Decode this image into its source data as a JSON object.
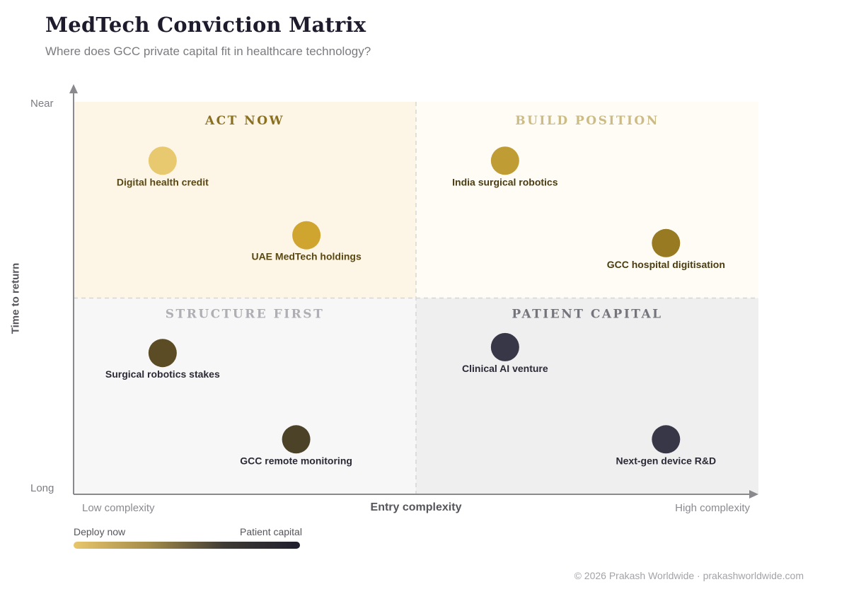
{
  "header": {
    "title": "MedTech Conviction Matrix",
    "subtitle": "Where does GCC private capital fit in healthcare technology?"
  },
  "axes": {
    "y_top": "Near",
    "y_bottom": "Long",
    "y_title": "Time to return",
    "x_left": "Low complexity",
    "x_right": "High complexity",
    "x_title": "Entry complexity"
  },
  "legend": {
    "left_label": "Deploy now",
    "right_label": "Patient capital",
    "gradient_colors": [
      "#e8c66c",
      "#a48c4a",
      "#3e3a34",
      "#1f1e2e"
    ]
  },
  "footer": "© 2026 Prakash Worldwide · prakashworldwide.com",
  "chart_data": {
    "type": "scatter",
    "title": "MedTech Conviction Matrix",
    "subtitle": "Where does GCC private capital fit in healthcare technology?",
    "xlabel": "Entry complexity",
    "ylabel": "Time to return",
    "xlim": [
      0,
      10
    ],
    "ylim": [
      0,
      10
    ],
    "x_tick_labels": [
      "Low complexity",
      "High complexity"
    ],
    "y_tick_labels": [
      "Long",
      "Near"
    ],
    "grid": false,
    "quadrants": [
      {
        "label": "ACT NOW",
        "fill": "#fdf6e7",
        "label_color": "#8a7020"
      },
      {
        "label": "BUILD POSITION",
        "fill": "#fefcf5",
        "label_color": "#cdbb86"
      },
      {
        "label": "STRUCTURE FIRST",
        "fill": "#f7f7f7",
        "label_color": "#aeaeb4"
      },
      {
        "label": "PATIENT CAPITAL",
        "fill": "#efeff0",
        "label_color": "#74747c"
      }
    ],
    "points": [
      {
        "name": "Digital health credit",
        "x": 1.3,
        "y": 8.5,
        "color": "#e8c96f",
        "label_color": "#5a4812"
      },
      {
        "name": "UAE MedTech holdings",
        "x": 3.4,
        "y": 6.6,
        "color": "#d0a52f",
        "label_color": "#5a4812"
      },
      {
        "name": "India surgical robotics",
        "x": 6.3,
        "y": 8.5,
        "color": "#c09c35",
        "label_color": "#4a3c10"
      },
      {
        "name": "GCC hospital digitisation",
        "x": 8.65,
        "y": 6.4,
        "color": "#977a22",
        "label_color": "#4a3c10"
      },
      {
        "name": "Surgical robotics stakes",
        "x": 1.3,
        "y": 3.6,
        "color": "#5b4c25",
        "label_color": "#2b2a36"
      },
      {
        "name": "GCC remote monitoring",
        "x": 3.25,
        "y": 1.4,
        "color": "#4b4228",
        "label_color": "#2b2a36"
      },
      {
        "name": "Clinical AI venture",
        "x": 6.3,
        "y": 3.75,
        "color": "#383747",
        "label_color": "#2b2a36"
      },
      {
        "name": "Next-gen device R&D",
        "x": 8.65,
        "y": 1.4,
        "color": "#383747",
        "label_color": "#2b2a36"
      }
    ]
  }
}
